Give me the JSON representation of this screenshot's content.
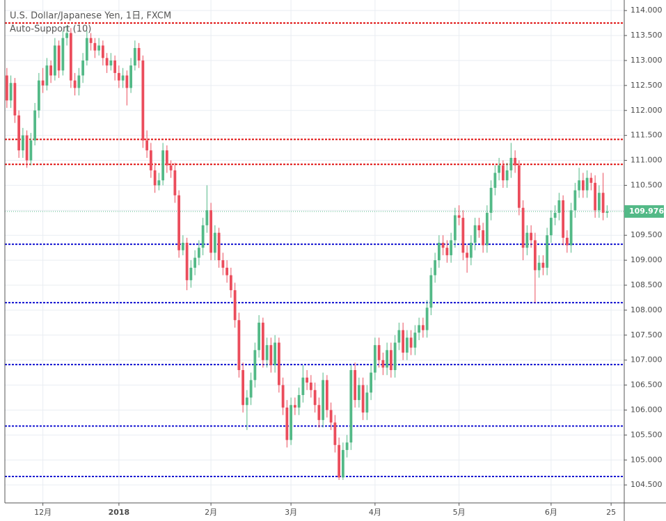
{
  "chart_data": {
    "type": "candlestick",
    "title": "U.S. Dollar/Japanese Yen, 1日, FXCM",
    "subtitle": "Auto-Support (10)",
    "up_color": "#53b987",
    "down_color": "#eb4d5c",
    "grid": true,
    "ylim": [
      104.14,
      114.1
    ],
    "yticks": [
      {
        "value": 104.5,
        "label": "104.500"
      },
      {
        "value": 105,
        "label": "105.000"
      },
      {
        "value": 105.5,
        "label": "105.500"
      },
      {
        "value": 106,
        "label": "106.000"
      },
      {
        "value": 106.5,
        "label": "106.500"
      },
      {
        "value": 107,
        "label": "107.000"
      },
      {
        "value": 107.5,
        "label": "107.500"
      },
      {
        "value": 108,
        "label": "108.000"
      },
      {
        "value": 108.5,
        "label": "108.500"
      },
      {
        "value": 109,
        "label": "109.000"
      },
      {
        "value": 109.5,
        "label": "109.500"
      },
      {
        "value": 110,
        "label": "110.000"
      },
      {
        "value": 110.5,
        "label": "110.500"
      },
      {
        "value": 111,
        "label": "111.000"
      },
      {
        "value": 111.5,
        "label": "111.500"
      },
      {
        "value": 112,
        "label": "112.000"
      },
      {
        "value": 112.5,
        "label": "112.500"
      },
      {
        "value": 113,
        "label": "113.000"
      },
      {
        "value": 113.5,
        "label": "113.500"
      },
      {
        "value": 114,
        "label": "114.000"
      }
    ],
    "levels": [
      {
        "value": 113.75,
        "color": "#e01010"
      },
      {
        "value": 111.42,
        "color": "#e01010"
      },
      {
        "value": 110.92,
        "color": "#e01010"
      },
      {
        "value": 109.32,
        "color": "#1010d0"
      },
      {
        "value": 108.15,
        "color": "#1010d0"
      },
      {
        "value": 106.91,
        "color": "#1010d0"
      },
      {
        "value": 105.68,
        "color": "#1010d0"
      },
      {
        "value": 104.67,
        "color": "#1010d0"
      }
    ],
    "categories": [
      null,
      null,
      null,
      null,
      null,
      null,
      null,
      null,
      null,
      "12月",
      null,
      null,
      null,
      null,
      null,
      null,
      null,
      null,
      null,
      null,
      null,
      null,
      null,
      null,
      null,
      null,
      null,
      null,
      "2018",
      null,
      null,
      null,
      null,
      null,
      null,
      null,
      null,
      null,
      null,
      null,
      null,
      null,
      null,
      null,
      null,
      null,
      null,
      null,
      null,
      null,
      null,
      "2月",
      null,
      null,
      null,
      null,
      null,
      null,
      null,
      null,
      null,
      null,
      null,
      null,
      null,
      null,
      null,
      null,
      null,
      null,
      null,
      "3月",
      null,
      null,
      null,
      null,
      null,
      null,
      null,
      null,
      null,
      null,
      null,
      null,
      null,
      null,
      null,
      null,
      null,
      null,
      null,
      null,
      "4月",
      null,
      null,
      null,
      null,
      null,
      null,
      null,
      null,
      null,
      null,
      null,
      null,
      null,
      null,
      null,
      null,
      null,
      null,
      null,
      null,
      "5月",
      null,
      null,
      null,
      null,
      null,
      null,
      null,
      null,
      null,
      null,
      null,
      null,
      null,
      null,
      null,
      null,
      null,
      null,
      null,
      null,
      null,
      null,
      "6月",
      null,
      null,
      null,
      null,
      null,
      null,
      null,
      null,
      null,
      null,
      null,
      null,
      null,
      null,
      "25"
    ],
    "ohlc": [
      [
        112.7,
        112.85,
        112.05,
        112.2
      ],
      [
        112.2,
        112.7,
        112.05,
        112.55
      ],
      [
        112.55,
        112.65,
        111.75,
        111.9
      ],
      [
        111.9,
        112.0,
        111.05,
        111.2
      ],
      [
        111.2,
        111.65,
        111.05,
        111.5
      ],
      [
        111.5,
        111.6,
        110.85,
        111.0
      ],
      [
        111.0,
        111.55,
        110.9,
        111.4
      ],
      [
        111.4,
        112.15,
        111.3,
        112.0
      ],
      [
        112.0,
        112.75,
        111.85,
        112.6
      ],
      [
        112.6,
        112.85,
        112.35,
        112.5
      ],
      [
        112.5,
        113.05,
        112.4,
        112.9
      ],
      [
        112.9,
        113.0,
        112.55,
        112.7
      ],
      [
        112.7,
        113.45,
        112.6,
        113.3
      ],
      [
        113.3,
        113.4,
        112.65,
        112.8
      ],
      [
        112.8,
        113.6,
        112.7,
        113.45
      ],
      [
        113.45,
        113.7,
        113.3,
        113.55
      ],
      [
        113.55,
        113.65,
        112.45,
        112.6
      ],
      [
        112.6,
        112.75,
        112.3,
        112.45
      ],
      [
        112.45,
        112.85,
        112.3,
        112.7
      ],
      [
        112.7,
        113.15,
        112.55,
        113.0
      ],
      [
        113.0,
        113.6,
        112.9,
        113.45
      ],
      [
        113.45,
        113.55,
        113.2,
        113.35
      ],
      [
        113.35,
        113.45,
        113.05,
        113.2
      ],
      [
        113.2,
        113.45,
        113.1,
        113.3
      ],
      [
        113.3,
        113.4,
        112.9,
        113.05
      ],
      [
        113.05,
        113.15,
        112.75,
        112.9
      ],
      [
        112.9,
        113.15,
        112.8,
        113.0
      ],
      [
        113.0,
        113.1,
        112.6,
        112.75
      ],
      [
        112.75,
        112.9,
        112.45,
        112.6
      ],
      [
        112.6,
        112.85,
        112.45,
        112.7
      ],
      [
        112.7,
        112.8,
        112.1,
        112.45
      ],
      [
        112.45,
        113.05,
        112.35,
        112.9
      ],
      [
        112.9,
        113.4,
        112.8,
        113.25
      ],
      [
        113.25,
        113.35,
        112.85,
        113.0
      ],
      [
        113.0,
        113.1,
        111.25,
        111.4
      ],
      [
        111.4,
        111.6,
        111.05,
        111.2
      ],
      [
        111.2,
        111.35,
        110.65,
        110.8
      ],
      [
        110.8,
        110.95,
        110.35,
        110.5
      ],
      [
        110.5,
        110.75,
        110.4,
        110.6
      ],
      [
        110.6,
        111.35,
        110.5,
        111.2
      ],
      [
        111.2,
        111.3,
        110.75,
        110.9
      ],
      [
        110.9,
        111.0,
        110.65,
        110.8
      ],
      [
        110.8,
        110.95,
        110.15,
        110.3
      ],
      [
        110.3,
        110.4,
        109.05,
        109.2
      ],
      [
        109.2,
        109.5,
        109.1,
        109.35
      ],
      [
        109.35,
        109.45,
        108.4,
        108.6
      ],
      [
        108.6,
        109.0,
        108.45,
        108.85
      ],
      [
        108.85,
        109.2,
        108.7,
        109.05
      ],
      [
        109.05,
        109.4,
        108.9,
        109.25
      ],
      [
        109.25,
        109.85,
        109.1,
        109.7
      ],
      [
        109.7,
        110.5,
        109.55,
        110.0
      ],
      [
        110.0,
        110.15,
        109.0,
        109.15
      ],
      [
        109.15,
        109.7,
        109.0,
        109.55
      ],
      [
        109.55,
        109.65,
        108.85,
        109.0
      ],
      [
        109.0,
        109.15,
        108.7,
        108.85
      ],
      [
        108.85,
        109.0,
        108.55,
        108.7
      ],
      [
        108.7,
        108.85,
        108.25,
        108.4
      ],
      [
        108.4,
        108.55,
        107.65,
        107.8
      ],
      [
        107.8,
        107.95,
        106.65,
        106.8
      ],
      [
        106.8,
        106.95,
        105.95,
        106.1
      ],
      [
        106.1,
        106.4,
        105.6,
        106.25
      ],
      [
        106.25,
        106.75,
        106.1,
        106.6
      ],
      [
        106.6,
        107.35,
        106.45,
        107.2
      ],
      [
        107.2,
        107.9,
        107.05,
        107.75
      ],
      [
        107.75,
        107.85,
        106.85,
        107.0
      ],
      [
        107.0,
        107.45,
        106.85,
        107.3
      ],
      [
        107.3,
        107.45,
        106.75,
        106.9
      ],
      [
        106.9,
        107.5,
        106.75,
        107.35
      ],
      [
        107.35,
        107.45,
        106.35,
        106.5
      ],
      [
        106.5,
        106.65,
        105.9,
        106.05
      ],
      [
        106.05,
        106.2,
        105.25,
        105.4
      ],
      [
        105.4,
        106.25,
        105.3,
        106.1
      ],
      [
        106.1,
        106.25,
        105.9,
        106.05
      ],
      [
        106.05,
        106.45,
        105.9,
        106.3
      ],
      [
        106.3,
        106.9,
        106.15,
        106.65
      ],
      [
        106.65,
        106.8,
        106.4,
        106.55
      ],
      [
        106.55,
        106.7,
        106.25,
        106.4
      ],
      [
        106.4,
        106.55,
        105.95,
        106.1
      ],
      [
        106.1,
        106.25,
        105.65,
        105.8
      ],
      [
        105.8,
        106.75,
        105.65,
        106.6
      ],
      [
        106.6,
        106.7,
        105.85,
        106.0
      ],
      [
        106.0,
        106.15,
        105.6,
        105.75
      ],
      [
        105.75,
        105.9,
        105.15,
        105.3
      ],
      [
        105.3,
        105.45,
        104.6,
        104.65
      ],
      [
        104.65,
        105.35,
        104.6,
        105.2
      ],
      [
        105.2,
        105.5,
        105.05,
        105.35
      ],
      [
        105.35,
        106.9,
        105.2,
        106.8
      ],
      [
        106.8,
        106.95,
        106.05,
        106.2
      ],
      [
        106.2,
        106.65,
        106.05,
        106.5
      ],
      [
        106.5,
        106.65,
        105.8,
        105.95
      ],
      [
        105.95,
        106.5,
        105.8,
        106.35
      ],
      [
        106.35,
        106.9,
        106.2,
        106.75
      ],
      [
        106.75,
        107.45,
        106.6,
        107.3
      ],
      [
        107.3,
        107.45,
        106.85,
        107.0
      ],
      [
        107.0,
        107.15,
        106.7,
        106.85
      ],
      [
        106.85,
        107.35,
        106.7,
        107.2
      ],
      [
        107.2,
        107.35,
        106.65,
        106.8
      ],
      [
        106.8,
        107.5,
        106.65,
        107.35
      ],
      [
        107.35,
        107.75,
        107.2,
        107.6
      ],
      [
        107.6,
        107.75,
        107.0,
        107.15
      ],
      [
        107.15,
        107.6,
        107.0,
        107.45
      ],
      [
        107.45,
        107.6,
        107.1,
        107.25
      ],
      [
        107.25,
        107.7,
        107.1,
        107.55
      ],
      [
        107.55,
        107.85,
        107.4,
        107.7
      ],
      [
        107.7,
        107.85,
        107.45,
        107.6
      ],
      [
        107.6,
        108.2,
        107.45,
        108.05
      ],
      [
        108.05,
        108.85,
        107.9,
        108.7
      ],
      [
        108.7,
        109.15,
        108.55,
        109.0
      ],
      [
        109.0,
        109.5,
        108.85,
        109.35
      ],
      [
        109.35,
        109.5,
        109.1,
        109.25
      ],
      [
        109.25,
        109.4,
        108.95,
        109.1
      ],
      [
        109.1,
        109.55,
        108.95,
        109.4
      ],
      [
        109.4,
        110.05,
        109.25,
        109.9
      ],
      [
        109.9,
        110.1,
        109.7,
        109.85
      ],
      [
        109.85,
        110.0,
        109.0,
        109.15
      ],
      [
        109.15,
        109.3,
        108.75,
        109.05
      ],
      [
        109.05,
        109.5,
        108.9,
        109.35
      ],
      [
        109.35,
        109.85,
        109.2,
        109.7
      ],
      [
        109.7,
        109.85,
        109.45,
        109.6
      ],
      [
        109.6,
        109.75,
        109.15,
        109.3
      ],
      [
        109.3,
        110.1,
        109.15,
        109.95
      ],
      [
        109.95,
        110.6,
        109.8,
        110.45
      ],
      [
        110.45,
        110.9,
        110.3,
        110.75
      ],
      [
        110.75,
        111.05,
        110.6,
        110.9
      ],
      [
        110.9,
        111.0,
        110.45,
        110.6
      ],
      [
        110.6,
        110.95,
        110.45,
        110.8
      ],
      [
        110.8,
        111.35,
        110.65,
        111.05
      ],
      [
        111.05,
        111.2,
        110.75,
        110.9
      ],
      [
        110.9,
        111.0,
        109.9,
        110.05
      ],
      [
        110.05,
        110.2,
        109.0,
        109.25
      ],
      [
        109.25,
        109.7,
        109.1,
        109.55
      ],
      [
        109.55,
        109.7,
        109.25,
        109.4
      ],
      [
        109.4,
        109.55,
        108.15,
        108.8
      ],
      [
        108.8,
        109.1,
        108.65,
        108.95
      ],
      [
        108.95,
        109.1,
        108.7,
        108.85
      ],
      [
        108.85,
        109.65,
        108.7,
        109.5
      ],
      [
        109.5,
        110.0,
        109.35,
        109.85
      ],
      [
        109.85,
        110.1,
        109.7,
        109.95
      ],
      [
        109.95,
        110.35,
        109.8,
        110.2
      ],
      [
        110.2,
        110.3,
        109.3,
        109.45
      ],
      [
        109.45,
        109.6,
        109.15,
        109.3
      ],
      [
        109.3,
        110.15,
        109.15,
        110.0
      ],
      [
        110.0,
        110.55,
        109.85,
        110.4
      ],
      [
        110.4,
        110.85,
        110.25,
        110.6
      ],
      [
        110.6,
        110.75,
        110.25,
        110.4
      ],
      [
        110.4,
        110.8,
        110.25,
        110.65
      ],
      [
        110.65,
        110.75,
        110.4,
        110.55
      ],
      [
        110.55,
        110.7,
        109.85,
        110.0
      ],
      [
        110.0,
        110.5,
        109.85,
        110.35
      ],
      [
        110.35,
        110.75,
        109.8,
        109.95
      ],
      [
        109.95,
        110.1,
        109.85,
        109.976
      ],
      null
    ]
  }
}
